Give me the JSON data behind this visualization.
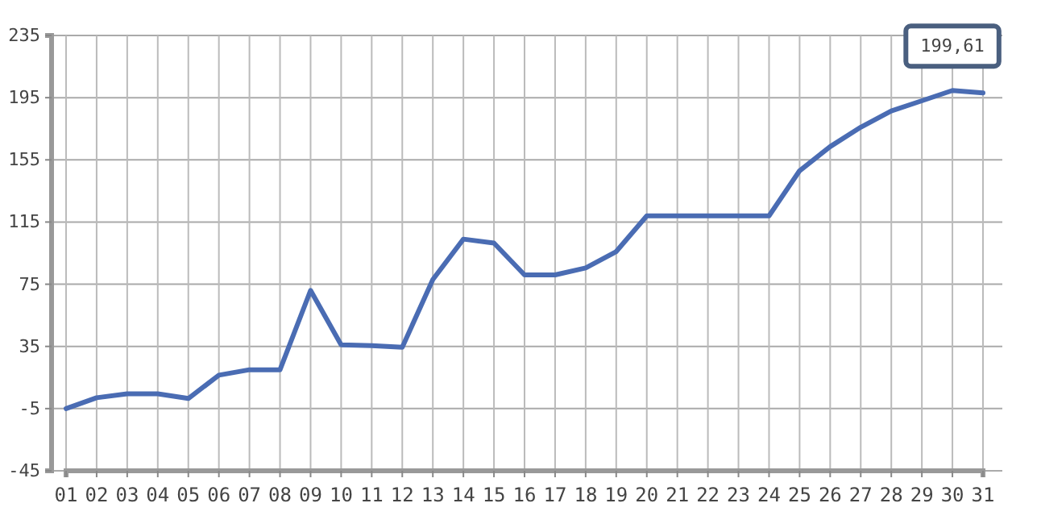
{
  "chart_data": {
    "type": "line",
    "categories": [
      "01",
      "02",
      "03",
      "04",
      "05",
      "06",
      "07",
      "08",
      "09",
      "10",
      "11",
      "12",
      "13",
      "14",
      "15",
      "16",
      "17",
      "18",
      "19",
      "20",
      "21",
      "22",
      "23",
      "24",
      "25",
      "26",
      "27",
      "28",
      "29",
      "30",
      "31"
    ],
    "series": [
      {
        "color": "#4a6cb3",
        "values": [
          -5,
          2,
          4.5,
          4.5,
          1.5,
          16.5,
          20,
          20,
          71,
          36,
          35.5,
          34.5,
          78,
          104,
          101.5,
          81,
          81,
          85.5,
          96,
          119,
          119,
          119,
          119,
          119,
          148,
          163.5,
          176,
          186.5,
          193,
          199.61,
          198
        ]
      }
    ],
    "ylim": [
      -45,
      235
    ],
    "yticks": [
      -45,
      -5,
      35,
      75,
      115,
      155,
      195,
      235
    ],
    "grid": true,
    "marker": "none",
    "line_style": "solid",
    "annotations": [
      {
        "text": "199,61",
        "x": "30",
        "y": 199.61
      }
    ]
  }
}
